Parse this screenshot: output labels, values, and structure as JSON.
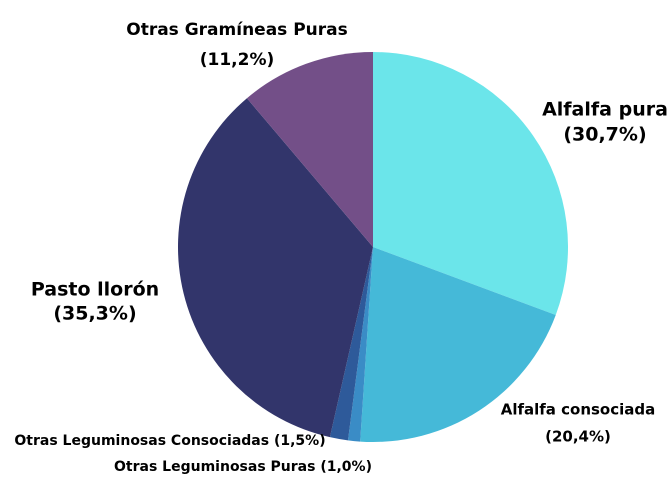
{
  "chart_data": {
    "type": "pie",
    "categories": [
      "Alfalfa pura",
      "Alfalfa consociada",
      "Otras Leguminosas Puras",
      "Otras Leguminosas Consociadas",
      "Pasto llorón",
      "Otras Gramíneas Puras"
    ],
    "values": [
      30.7,
      20.4,
      1.0,
      1.5,
      35.3,
      11.2
    ],
    "value_labels": [
      "(30,7%)",
      "(20,4%)",
      "(1,0%)",
      "(1,5%)",
      "(35,3%)",
      "(11,2%)"
    ],
    "colors": [
      "#6be5ea",
      "#45b9d8",
      "#3a8cc6",
      "#2e5a9a",
      "#32356b",
      "#734f88"
    ]
  }
}
